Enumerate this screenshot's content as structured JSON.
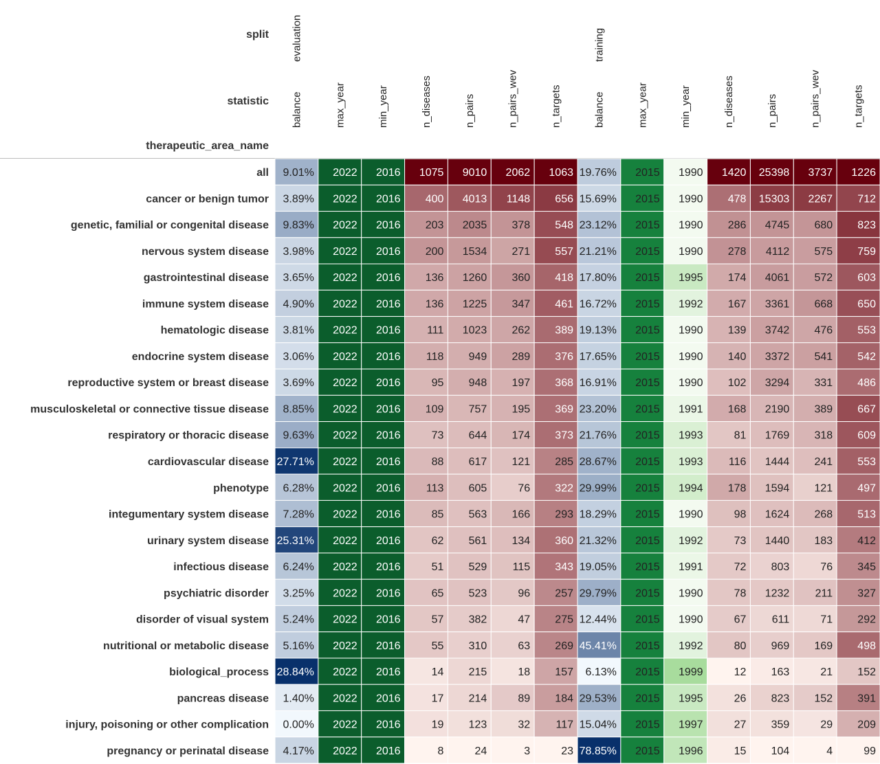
{
  "chart_data": {
    "type": "heatmap",
    "header_labels": {
      "split": "split",
      "statistic": "statistic",
      "index": "therapeutic_area_name"
    },
    "splits": [
      {
        "name": "evaluation",
        "span": 7
      },
      {
        "name": "training",
        "span": 7
      }
    ],
    "columns": [
      "balance",
      "max_year",
      "min_year",
      "n_diseases",
      "n_pairs",
      "n_pairs_wev",
      "n_targets",
      "balance",
      "max_year",
      "min_year",
      "n_diseases",
      "n_pairs",
      "n_pairs_wev",
      "n_targets"
    ],
    "rows": [
      {
        "name": "all",
        "values": [
          "9.01%",
          2022,
          2016,
          1075,
          9010,
          2062,
          1063,
          "19.76%",
          2015,
          1990,
          1420,
          25398,
          3737,
          1226
        ]
      },
      {
        "name": "cancer or benign tumor",
        "values": [
          "3.89%",
          2022,
          2016,
          400,
          4013,
          1148,
          656,
          "15.69%",
          2015,
          1990,
          478,
          15303,
          2267,
          712
        ]
      },
      {
        "name": "genetic, familial or congenital disease",
        "values": [
          "9.83%",
          2022,
          2016,
          203,
          2035,
          378,
          548,
          "23.12%",
          2015,
          1990,
          286,
          4745,
          680,
          823
        ]
      },
      {
        "name": "nervous system disease",
        "values": [
          "3.98%",
          2022,
          2016,
          200,
          1534,
          271,
          557,
          "21.21%",
          2015,
          1990,
          278,
          4112,
          575,
          759
        ]
      },
      {
        "name": "gastrointestinal disease",
        "values": [
          "3.65%",
          2022,
          2016,
          136,
          1260,
          360,
          418,
          "17.80%",
          2015,
          1995,
          174,
          4061,
          572,
          603
        ]
      },
      {
        "name": "immune system disease",
        "values": [
          "4.90%",
          2022,
          2016,
          136,
          1225,
          347,
          461,
          "16.72%",
          2015,
          1992,
          167,
          3361,
          668,
          650
        ]
      },
      {
        "name": "hematologic disease",
        "values": [
          "3.81%",
          2022,
          2016,
          111,
          1023,
          262,
          389,
          "19.13%",
          2015,
          1990,
          139,
          3742,
          476,
          553
        ]
      },
      {
        "name": "endocrine system disease",
        "values": [
          "3.06%",
          2022,
          2016,
          118,
          949,
          289,
          376,
          "17.65%",
          2015,
          1990,
          140,
          3372,
          541,
          542
        ]
      },
      {
        "name": "reproductive system or breast disease",
        "values": [
          "3.69%",
          2022,
          2016,
          95,
          948,
          197,
          368,
          "16.91%",
          2015,
          1990,
          102,
          3294,
          331,
          486
        ]
      },
      {
        "name": "musculoskeletal or connective tissue disease",
        "values": [
          "8.85%",
          2022,
          2016,
          109,
          757,
          195,
          369,
          "23.20%",
          2015,
          1991,
          168,
          2190,
          389,
          667
        ]
      },
      {
        "name": "respiratory or thoracic disease",
        "values": [
          "9.63%",
          2022,
          2016,
          73,
          644,
          174,
          373,
          "21.76%",
          2015,
          1993,
          81,
          1769,
          318,
          609
        ]
      },
      {
        "name": "cardiovascular disease",
        "values": [
          "27.71%",
          2022,
          2016,
          88,
          617,
          121,
          285,
          "28.67%",
          2015,
          1993,
          116,
          1444,
          241,
          553
        ]
      },
      {
        "name": "phenotype",
        "values": [
          "6.28%",
          2022,
          2016,
          113,
          605,
          76,
          322,
          "29.99%",
          2015,
          1994,
          178,
          1594,
          121,
          497
        ]
      },
      {
        "name": "integumentary system disease",
        "values": [
          "7.28%",
          2022,
          2016,
          85,
          563,
          166,
          293,
          "18.29%",
          2015,
          1990,
          98,
          1624,
          268,
          513
        ]
      },
      {
        "name": "urinary system disease",
        "values": [
          "25.31%",
          2022,
          2016,
          62,
          561,
          134,
          360,
          "21.32%",
          2015,
          1992,
          73,
          1440,
          183,
          412
        ]
      },
      {
        "name": "infectious disease",
        "values": [
          "6.24%",
          2022,
          2016,
          51,
          529,
          115,
          343,
          "19.05%",
          2015,
          1991,
          72,
          803,
          76,
          345
        ]
      },
      {
        "name": "psychiatric disorder",
        "values": [
          "3.25%",
          2022,
          2016,
          65,
          523,
          96,
          257,
          "29.79%",
          2015,
          1990,
          78,
          1232,
          211,
          327
        ]
      },
      {
        "name": "disorder of visual system",
        "values": [
          "5.24%",
          2022,
          2016,
          57,
          382,
          47,
          275,
          "12.44%",
          2015,
          1990,
          67,
          611,
          71,
          292
        ]
      },
      {
        "name": "nutritional or metabolic disease",
        "values": [
          "5.16%",
          2022,
          2016,
          55,
          310,
          63,
          269,
          "45.41%",
          2015,
          1992,
          80,
          969,
          169,
          498
        ]
      },
      {
        "name": "biological_process",
        "values": [
          "28.84%",
          2022,
          2016,
          14,
          215,
          18,
          157,
          "6.13%",
          2015,
          1999,
          12,
          163,
          21,
          152
        ]
      },
      {
        "name": "pancreas disease",
        "values": [
          "1.40%",
          2022,
          2016,
          17,
          214,
          89,
          184,
          "29.53%",
          2015,
          1995,
          26,
          823,
          152,
          391
        ]
      },
      {
        "name": "injury, poisoning or other complication",
        "values": [
          "0.00%",
          2022,
          2016,
          19,
          123,
          32,
          117,
          "15.04%",
          2015,
          1997,
          27,
          359,
          29,
          209
        ]
      },
      {
        "name": "pregnancy or perinatal disease",
        "values": [
          "4.17%",
          2022,
          2016,
          8,
          24,
          3,
          23,
          "78.85%",
          2015,
          1996,
          15,
          104,
          4,
          99
        ]
      }
    ],
    "color_scales": {
      "balance": "blues",
      "max_year": "greens-dark",
      "min_year": "greens",
      "counts": "reds"
    },
    "colors": {
      "balance_low": "#f2f8fd",
      "balance_high": "#08306b",
      "year_max": "#0b5d2c",
      "year_mid": "#16813d",
      "year_low": "#f3faf0",
      "year_high": "#a8dc9d",
      "count_low": "#fff4ef",
      "count_high": "#67000d",
      "text_dark": "#222222",
      "text_light": "#ffffff"
    }
  }
}
